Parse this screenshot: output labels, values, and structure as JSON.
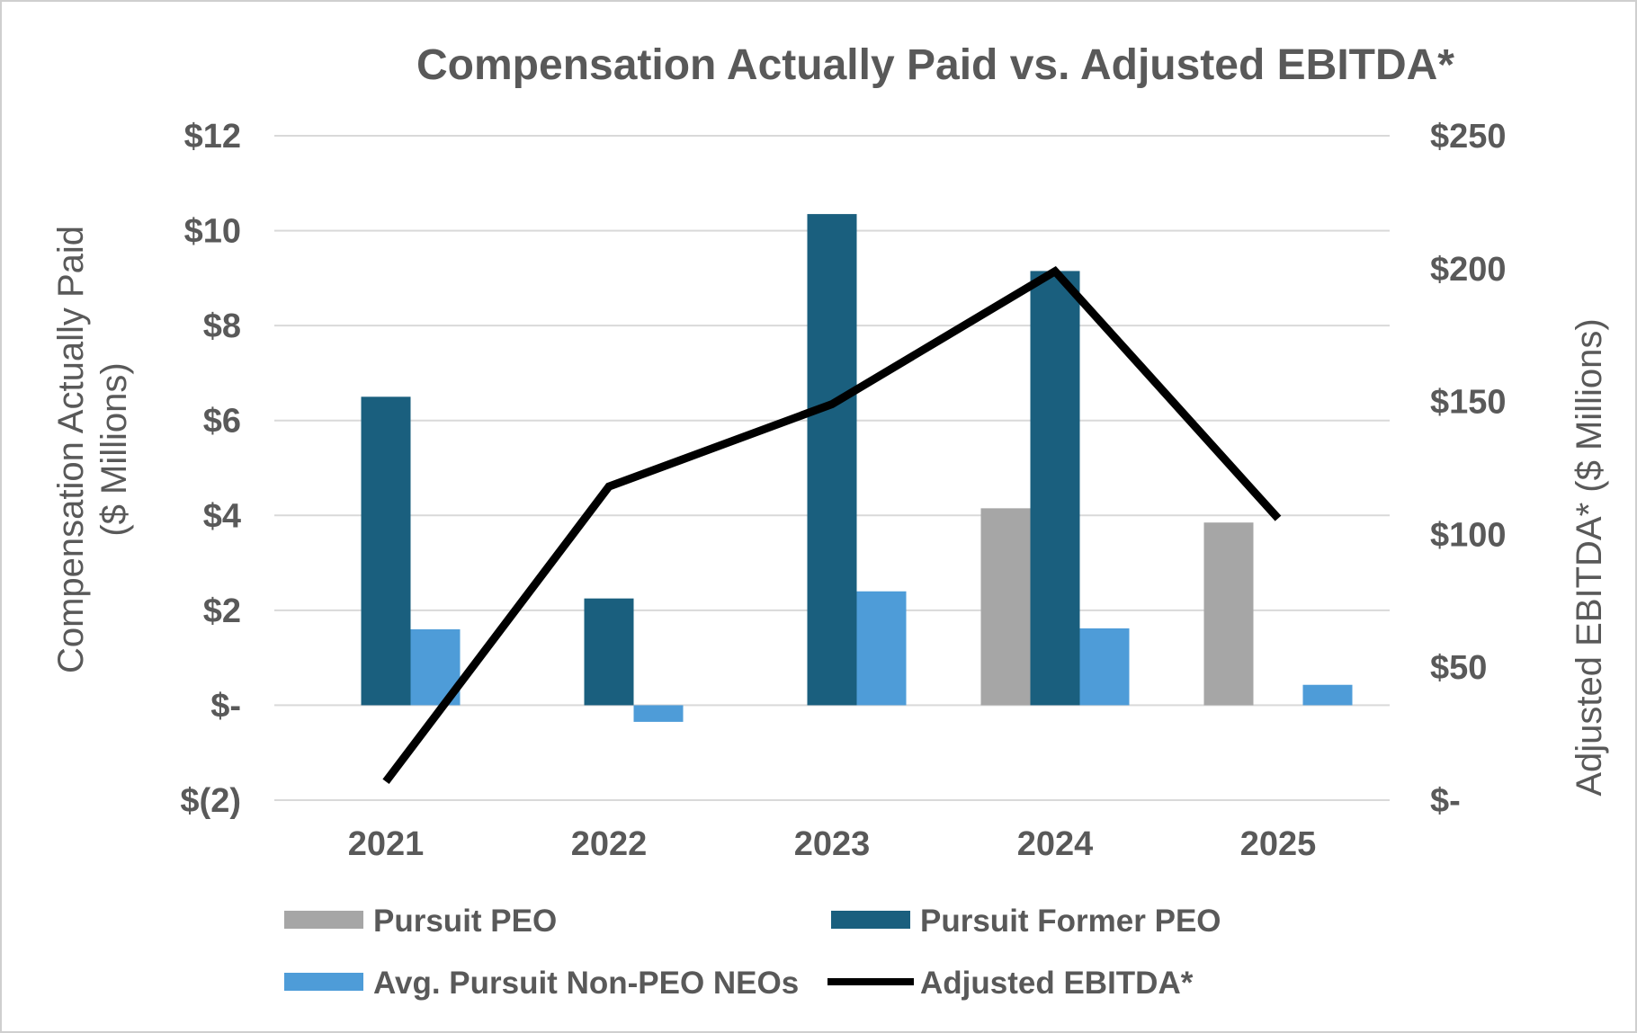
{
  "chart_data": {
    "type": "bar",
    "title": "Compensation Actually Paid vs. Adjusted EBITDA*",
    "categories": [
      "2021",
      "2022",
      "2023",
      "2024",
      "2025"
    ],
    "ylabel_line1": "Compensation Actually Paid",
    "ylabel_line2": "($ Millions)",
    "y2label": "Adjusted EBITDA* ($ Millions)",
    "ylim": [
      -2,
      12
    ],
    "y2lim": [
      0,
      250
    ],
    "yticks": [
      {
        "value": 12,
        "label": "$12"
      },
      {
        "value": 10,
        "label": "$10"
      },
      {
        "value": 8,
        "label": "$8"
      },
      {
        "value": 6,
        "label": "$6"
      },
      {
        "value": 4,
        "label": "$4"
      },
      {
        "value": 2,
        "label": "$2"
      },
      {
        "value": 0,
        "label": "$-"
      },
      {
        "value": -2,
        "label": "$(2)"
      }
    ],
    "y2ticks": [
      {
        "value": 250,
        "label": "$250"
      },
      {
        "value": 200,
        "label": "$200"
      },
      {
        "value": 150,
        "label": "$150"
      },
      {
        "value": 100,
        "label": "$100"
      },
      {
        "value": 50,
        "label": "$50"
      },
      {
        "value": 0,
        "label": "$-"
      }
    ],
    "series": [
      {
        "name": "Pursuit PEO",
        "type": "bar",
        "axis": "left",
        "color": "#a6a6a6",
        "values": [
          null,
          null,
          null,
          4.15,
          3.85
        ]
      },
      {
        "name": "Pursuit Former PEO",
        "type": "bar",
        "axis": "left",
        "color": "#1a5f7e",
        "values": [
          6.5,
          2.25,
          10.35,
          9.15,
          null
        ]
      },
      {
        "name": "Avg. Pursuit Non-PEO NEOs",
        "type": "bar",
        "axis": "left",
        "color": "#4e9cd8",
        "values": [
          1.6,
          -0.35,
          2.4,
          1.62,
          0.43
        ]
      },
      {
        "name": "Adjusted EBITDA*",
        "type": "line",
        "axis": "right",
        "color": "#000000",
        "values": [
          7,
          118,
          149,
          199,
          106
        ]
      }
    ],
    "grid": true,
    "legend_position": "bottom"
  }
}
